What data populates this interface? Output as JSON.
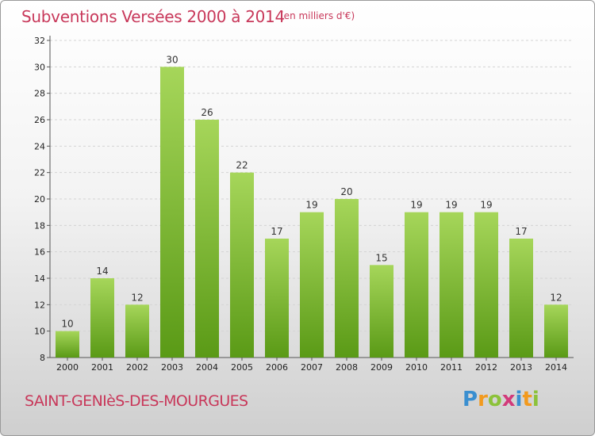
{
  "title": "Subventions Versées 2000 à 2014",
  "unit_note": "(en milliers d'€)",
  "commune": "SAINT-GENIèS-DES-MOURGUES",
  "logo": {
    "letters": [
      {
        "char": "P",
        "color": "#3a8fd0"
      },
      {
        "char": "r",
        "color": "#f29a1e"
      },
      {
        "char": "o",
        "color": "#8cc23a"
      },
      {
        "char": "x",
        "color": "#d23a7a"
      },
      {
        "char": "i",
        "color": "#3a8fd0"
      },
      {
        "char": "t",
        "color": "#f29a1e"
      },
      {
        "char": "i",
        "color": "#8cc23a"
      }
    ]
  },
  "colors": {
    "bar_top": "#a6d65a",
    "bar_bottom": "#5a9a16",
    "title": "#c8385a",
    "grid": "#d4d4d4"
  },
  "chart_data": {
    "type": "bar",
    "categories": [
      "2000",
      "2001",
      "2002",
      "2003",
      "2004",
      "2005",
      "2006",
      "2007",
      "2008",
      "2009",
      "2010",
      "2011",
      "2012",
      "2013",
      "2014"
    ],
    "values": [
      10,
      14,
      12,
      30,
      26,
      22,
      17,
      19,
      20,
      15,
      19,
      19,
      19,
      17,
      12
    ],
    "title": "Subventions Versées 2000 à 2014",
    "xlabel": "",
    "ylabel": "",
    "ylim": [
      8,
      32
    ],
    "yticks": [
      8,
      10,
      12,
      14,
      16,
      18,
      20,
      22,
      24,
      26,
      28,
      30,
      32
    ],
    "grid": "horizontal dashed",
    "data_labels": true
  }
}
